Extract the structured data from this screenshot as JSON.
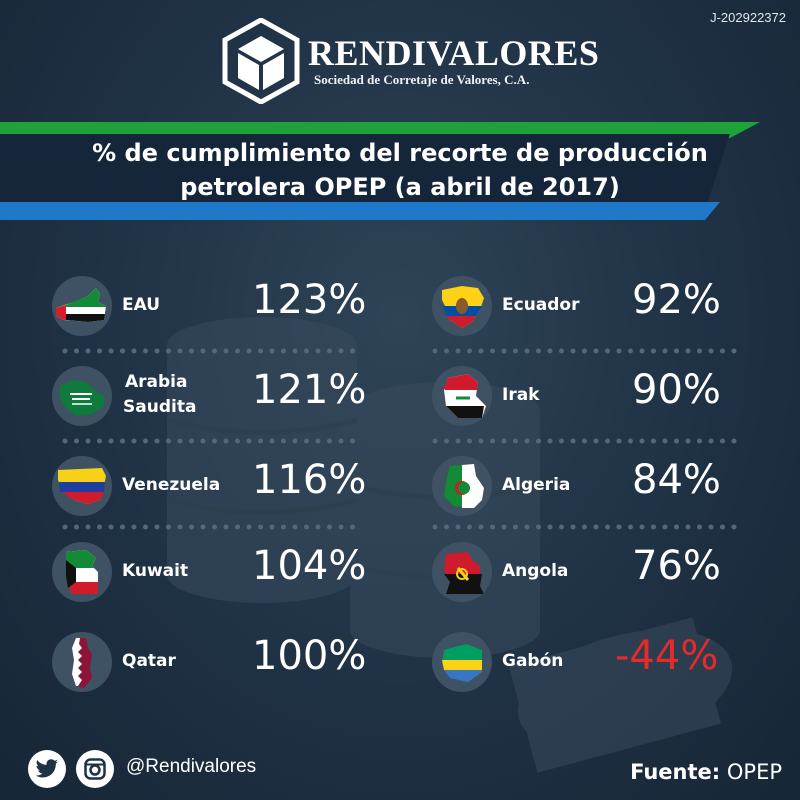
{
  "doc_id": "J-202922372",
  "brand": {
    "name": "RENDIVALORES",
    "subtitle": "Sociedad de Corretaje de Valores, C.A."
  },
  "title": {
    "line1": "% de cumplimiento del recorte de producción",
    "line2": "petrolera OPEP (a abril de 2017)"
  },
  "left_column": [
    {
      "country": "EAU",
      "value": "123%",
      "flag": "uae-flag-icon"
    },
    {
      "country": "Arabia Saudita",
      "line1": "Arabia",
      "line2": "Saudita",
      "value": "121%",
      "flag": "saudi-flag-icon"
    },
    {
      "country": "Venezuela",
      "value": "116%",
      "flag": "venezuela-flag-icon"
    },
    {
      "country": "Kuwait",
      "value": "104%",
      "flag": "kuwait-flag-icon"
    },
    {
      "country": "Qatar",
      "value": "100%",
      "flag": "qatar-flag-icon"
    }
  ],
  "right_column": [
    {
      "country": "Ecuador",
      "value": "92%",
      "flag": "ecuador-flag-icon"
    },
    {
      "country": "Irak",
      "value": "90%",
      "flag": "iraq-flag-icon"
    },
    {
      "country": "Algeria",
      "value": "84%",
      "flag": "algeria-flag-icon"
    },
    {
      "country": "Angola",
      "value": "76%",
      "flag": "angola-flag-icon"
    },
    {
      "country": "Gabón",
      "value": "-44%",
      "flag": "gabon-flag-icon",
      "negative": true
    }
  ],
  "footer": {
    "handle": "@Rendivalores",
    "source_label": "Fuente:",
    "source_value": "OPEP"
  },
  "colors": {
    "background": "#1f3144",
    "banner_green": "#1fa23a",
    "banner_blue": "#1f78c8",
    "banner_dark": "#16263a",
    "negative": "#e32b2b",
    "separator": "#55687a"
  }
}
